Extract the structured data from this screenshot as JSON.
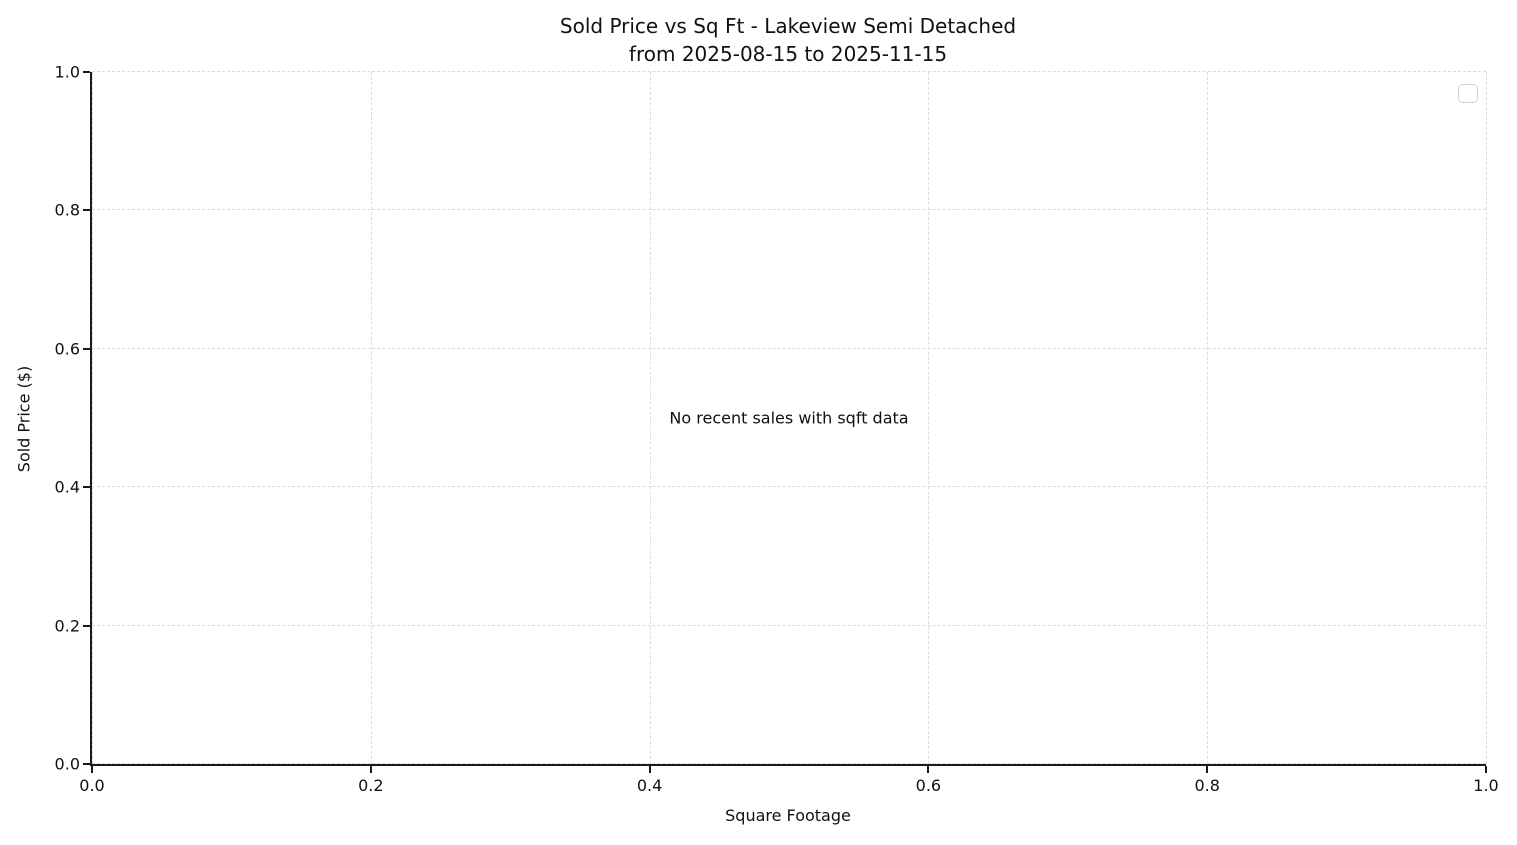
{
  "chart_data": {
    "type": "scatter",
    "title": "Sold Price vs Sq Ft - Lakeview Semi Detached\nfrom 2025-08-15 to 2025-11-15",
    "title_lines": [
      "Sold Price vs Sq Ft - Lakeview Semi Detached",
      "from 2025-08-15 to 2025-11-15"
    ],
    "xlabel": "Square Footage",
    "ylabel": "Sold Price ($)",
    "xlim": [
      0.0,
      1.0
    ],
    "ylim": [
      0.0,
      1.0
    ],
    "xticks": [
      0.0,
      0.2,
      0.4,
      0.6,
      0.8,
      1.0
    ],
    "yticks": [
      0.0,
      0.2,
      0.4,
      0.6,
      0.8,
      1.0
    ],
    "xtick_labels": [
      "0.0",
      "0.2",
      "0.4",
      "0.6",
      "0.8",
      "1.0"
    ],
    "ytick_labels": [
      "0.0",
      "0.2",
      "0.4",
      "0.6",
      "0.8",
      "1.0"
    ],
    "series": [],
    "points": [],
    "annotations": [
      "No recent sales with sqft data"
    ],
    "grid": true,
    "grid_style": "dashed",
    "legend": {
      "visible": true,
      "position": "upper right",
      "entries": []
    },
    "colors": {
      "background": "#ffffff",
      "text": "#111111",
      "spine": "#1a1a1a",
      "grid": "#dcdcdc",
      "legend_border": "#d2d2d2"
    }
  }
}
